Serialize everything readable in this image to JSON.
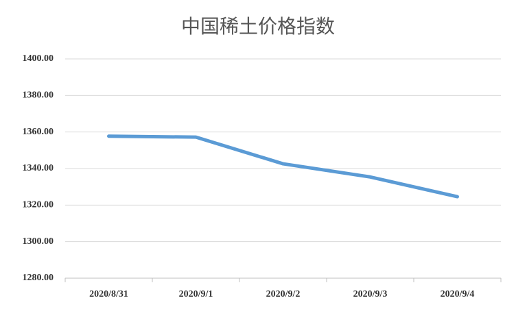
{
  "chart_data": {
    "type": "line",
    "title": "中国稀土价格指数",
    "categories": [
      "2020/8/31",
      "2020/9/1",
      "2020/9/2",
      "2020/9/3",
      "2020/9/4"
    ],
    "series": [
      {
        "name": "中国稀土价格指数",
        "color": "#5b9bd5",
        "values": [
          1357.7,
          1357.2,
          1342.6,
          1335.4,
          1324.6
        ]
      }
    ],
    "ylim": [
      1280,
      1400
    ],
    "yticks": [
      {
        "value": 1280,
        "label": "1280.00"
      },
      {
        "value": 1300,
        "label": "1300.00"
      },
      {
        "value": 1320,
        "label": "1320.00"
      },
      {
        "value": 1340,
        "label": "1340.00"
      },
      {
        "value": 1360,
        "label": "1360.00"
      },
      {
        "value": 1380,
        "label": "1380.00"
      },
      {
        "value": 1400,
        "label": "1400.00"
      }
    ],
    "grid": true
  }
}
